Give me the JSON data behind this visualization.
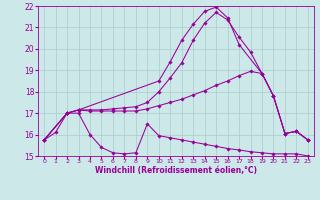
{
  "xlabel": "Windchill (Refroidissement éolien,°C)",
  "bg_color": "#cce8e8",
  "line_color": "#990099",
  "grid_color": "#aacccc",
  "xlim": [
    -0.5,
    23.5
  ],
  "ylim": [
    15,
    22
  ],
  "xticks": [
    0,
    1,
    2,
    3,
    4,
    5,
    6,
    7,
    8,
    9,
    10,
    11,
    12,
    13,
    14,
    15,
    16,
    17,
    18,
    19,
    20,
    21,
    22,
    23
  ],
  "yticks": [
    15,
    16,
    17,
    18,
    19,
    20,
    21,
    22
  ],
  "line1_x": [
    0,
    1,
    2,
    3,
    4,
    5,
    6,
    7,
    8,
    9,
    10,
    11,
    12,
    13,
    14,
    15,
    16,
    17,
    18,
    19,
    20,
    21,
    22,
    23
  ],
  "line1_y": [
    15.75,
    16.1,
    17.0,
    17.0,
    16.0,
    15.4,
    15.15,
    15.1,
    15.15,
    16.5,
    15.95,
    15.85,
    15.75,
    15.65,
    15.55,
    15.45,
    15.35,
    15.28,
    15.2,
    15.15,
    15.1,
    15.1,
    15.1,
    15.0
  ],
  "line2_x": [
    0,
    2,
    3,
    4,
    5,
    6,
    7,
    8,
    9,
    10,
    11,
    12,
    13,
    14,
    15,
    16,
    17,
    18,
    19,
    20,
    21,
    22,
    23
  ],
  "line2_y": [
    15.75,
    17.0,
    17.15,
    17.1,
    17.1,
    17.1,
    17.1,
    17.1,
    17.2,
    17.35,
    17.5,
    17.65,
    17.85,
    18.05,
    18.3,
    18.5,
    18.75,
    18.95,
    18.85,
    17.8,
    16.05,
    16.15,
    15.75
  ],
  "line3_x": [
    0,
    2,
    3,
    4,
    5,
    6,
    7,
    8,
    9,
    10,
    11,
    12,
    13,
    14,
    15,
    16,
    17,
    18,
    19,
    20,
    21,
    22,
    23
  ],
  "line3_y": [
    15.75,
    17.0,
    17.15,
    17.15,
    17.15,
    17.2,
    17.25,
    17.3,
    17.5,
    18.0,
    18.65,
    19.35,
    20.4,
    21.2,
    21.7,
    21.35,
    20.55,
    19.85,
    18.85,
    17.8,
    16.05,
    16.15,
    15.75
  ],
  "line4_x": [
    0,
    2,
    3,
    10,
    11,
    12,
    13,
    14,
    15,
    16,
    17,
    19,
    20,
    21,
    22,
    23
  ],
  "line4_y": [
    15.75,
    17.0,
    17.15,
    18.5,
    19.4,
    20.4,
    21.15,
    21.75,
    21.95,
    21.45,
    20.2,
    18.85,
    17.8,
    16.05,
    16.15,
    15.75
  ]
}
